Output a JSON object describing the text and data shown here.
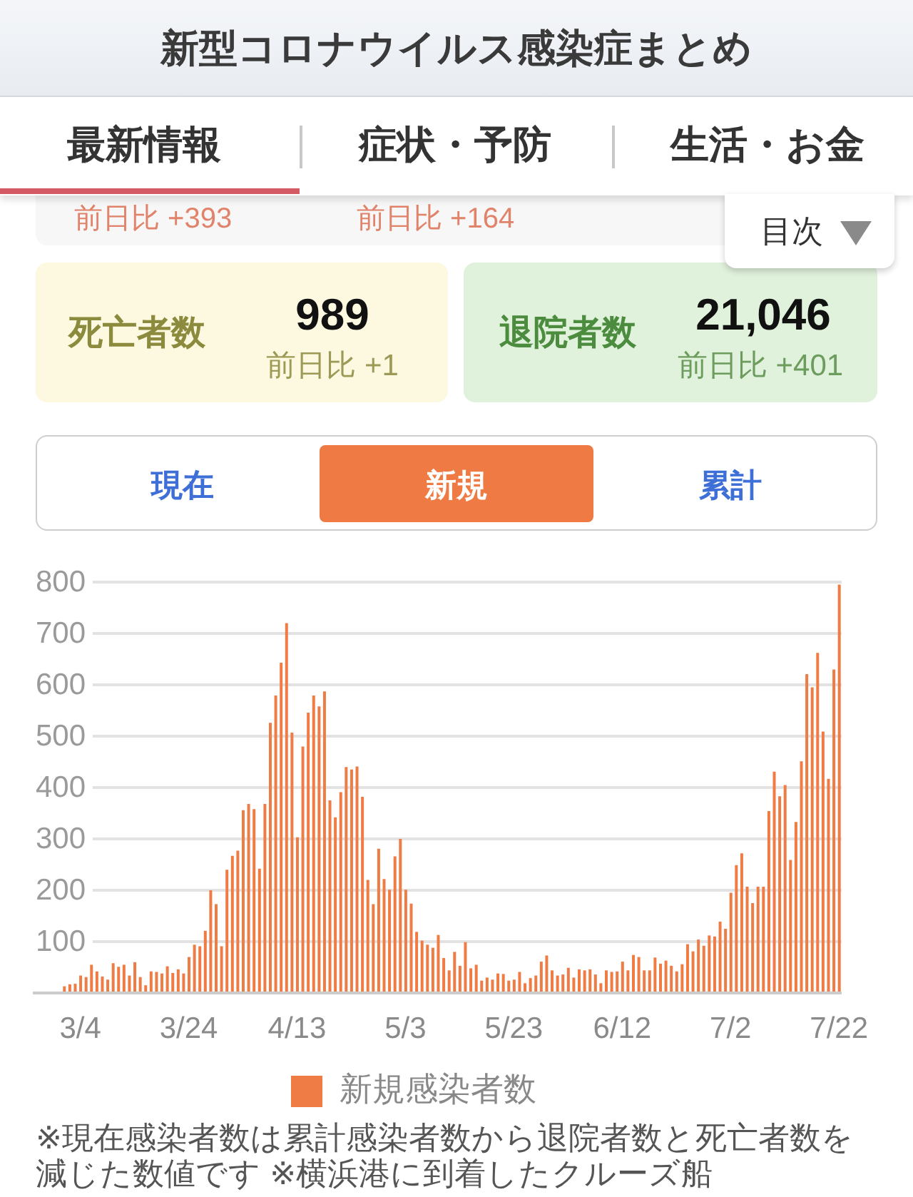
{
  "chart_data": [
    {
      "type": "other",
      "title": "新型コロナウイルス感染症まとめ",
      "annotations": [
        "最新情報",
        "症状・予防",
        "生活・お金",
        "前日比 +393",
        "前日比 +164",
        "目次",
        "死亡者数",
        "989",
        "前日比 +1",
        "退院者数",
        "21,046",
        "前日比 +401",
        "現在",
        "新規",
        "累計"
      ]
    },
    {
      "type": "bar",
      "categories": [
        null,
        null,
        null,
        "3/4",
        null,
        null,
        null,
        null,
        null,
        null,
        null,
        null,
        null,
        null,
        null,
        null,
        null,
        null,
        null,
        null,
        null,
        null,
        null,
        "3/24",
        null,
        null,
        null,
        null,
        null,
        null,
        null,
        null,
        null,
        null,
        null,
        null,
        null,
        null,
        null,
        null,
        null,
        null,
        null,
        "4/13",
        null,
        null,
        null,
        null,
        null,
        null,
        null,
        null,
        null,
        null,
        null,
        null,
        null,
        null,
        null,
        null,
        null,
        null,
        null,
        "5/3",
        null,
        null,
        null,
        null,
        null,
        null,
        null,
        null,
        null,
        null,
        null,
        null,
        null,
        null,
        null,
        null,
        null,
        null,
        null,
        "5/23",
        null,
        null,
        null,
        null,
        null,
        null,
        null,
        null,
        null,
        null,
        null,
        null,
        null,
        null,
        null,
        null,
        null,
        null,
        null,
        "6/12",
        null,
        null,
        null,
        null,
        null,
        null,
        null,
        null,
        null,
        null,
        null,
        null,
        null,
        null,
        null,
        null,
        null,
        null,
        null,
        "7/2",
        null,
        null,
        null,
        null,
        null,
        null,
        null,
        null,
        null,
        null,
        null,
        null,
        null,
        null,
        null,
        null,
        null,
        null,
        null,
        "7/22"
      ],
      "series": [
        {
          "name": "新規感染者数",
          "color": "#ef7b45",
          "values": [
            13,
            17,
            18,
            34,
            31,
            55,
            42,
            32,
            26,
            58,
            51,
            55,
            34,
            60,
            31,
            15,
            42,
            41,
            38,
            52,
            39,
            46,
            38,
            70,
            94,
            91,
            121,
            200,
            173,
            91,
            240,
            267,
            277,
            356,
            368,
            358,
            242,
            368,
            526,
            579,
            643,
            720,
            507,
            303,
            480,
            546,
            579,
            558,
            587,
            375,
            342,
            391,
            440,
            435,
            441,
            382,
            220,
            173,
            281,
            222,
            201,
            266,
            300,
            201,
            174,
            119,
            102,
            94,
            88,
            113,
            68,
            44,
            80,
            53,
            99,
            48,
            55,
            24,
            30,
            26,
            38,
            37,
            24,
            26,
            41,
            19,
            29,
            34,
            61,
            73,
            44,
            34,
            36,
            49,
            30,
            46,
            44,
            46,
            36,
            19,
            44,
            41,
            42,
            61,
            44,
            74,
            70,
            44,
            44,
            69,
            57,
            63,
            53,
            42,
            56,
            95,
            81,
            104,
            92,
            112,
            110,
            139,
            125,
            195,
            249,
            272,
            207,
            175,
            207,
            207,
            354,
            431,
            383,
            405,
            259,
            333,
            451,
            621,
            595,
            662,
            509,
            417,
            630,
            795
          ]
        }
      ],
      "ylim": [
        0,
        800
      ],
      "yticks": [
        100,
        200,
        300,
        400,
        500,
        600,
        700,
        800
      ],
      "grid": "y",
      "legend": "bottom",
      "annotations": [
        "※現在感染者数は累計感染者数から退院者数と死亡者数を減じた数値です ※横浜港に到着したクルーズ船"
      ]
    }
  ]
}
